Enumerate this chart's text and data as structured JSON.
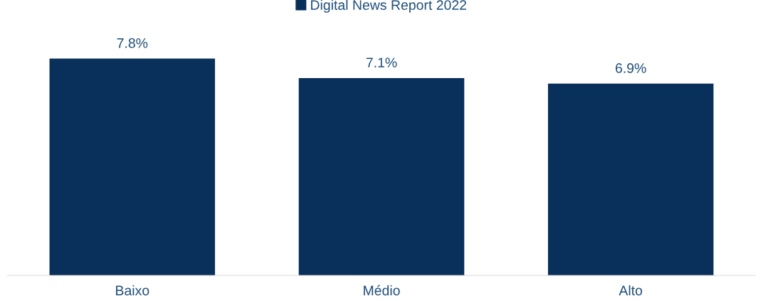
{
  "chart_data": {
    "type": "bar",
    "categories": [
      "Baixo",
      "Médio",
      "Alto"
    ],
    "series": [
      {
        "name": "Digital News Report 2022",
        "color": "#08305a",
        "values": [
          7.8,
          7.1,
          6.9
        ],
        "value_labels": [
          "7.8%",
          "7.1%",
          "6.9%"
        ]
      }
    ],
    "legend": "top",
    "grid": false
  }
}
